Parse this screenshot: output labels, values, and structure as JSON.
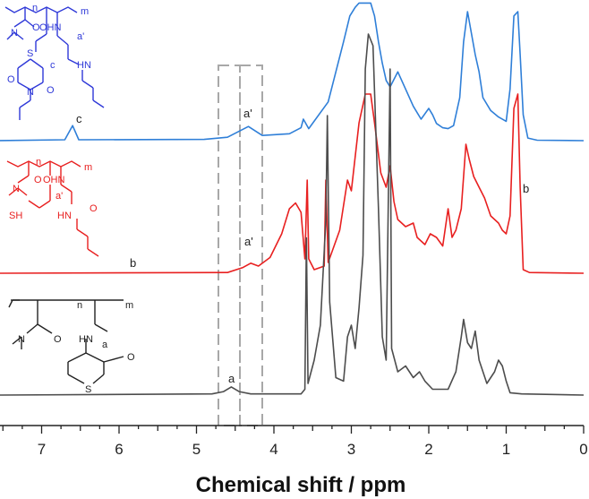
{
  "chart_data": {
    "type": "line",
    "title": "",
    "xlabel": "Chemical shift / ppm",
    "ylabel": "",
    "xlim": [
      7.55,
      0
    ],
    "x_reversed": true,
    "xticks": [
      7,
      6,
      5,
      4,
      3,
      2,
      1,
      0
    ],
    "grid": false,
    "series": [
      {
        "color": "#2f7fd8",
        "labels": [
          {
            "text": "c",
            "ppm": 6.6
          },
          {
            "text": "a'",
            "ppm": 4.33
          }
        ],
        "structure": {
          "labels": [
            "n",
            "m",
            "O",
            "OHN",
            "N",
            "a'",
            "S",
            "HN",
            "c",
            "O",
            "N",
            "O"
          ]
        },
        "points": [
          [
            7.55,
            0
          ],
          [
            6.7,
            0.02
          ],
          [
            6.6,
            0.35
          ],
          [
            6.52,
            0.02
          ],
          [
            4.9,
            0.03
          ],
          [
            4.6,
            0.08
          ],
          [
            4.33,
            0.33
          ],
          [
            4.15,
            0.12
          ],
          [
            3.8,
            0.16
          ],
          [
            3.65,
            0.3
          ],
          [
            3.62,
            0.5
          ],
          [
            3.55,
            0.28
          ],
          [
            3.3,
            0.9
          ],
          [
            3.2,
            1.6
          ],
          [
            3.1,
            2.3
          ],
          [
            3.02,
            2.9
          ],
          [
            2.95,
            3.1
          ],
          [
            2.9,
            3.2
          ],
          [
            2.82,
            3.2
          ],
          [
            2.75,
            3.2
          ],
          [
            2.7,
            2.9
          ],
          [
            2.65,
            2.3
          ],
          [
            2.6,
            1.8
          ],
          [
            2.55,
            1.4
          ],
          [
            2.5,
            1.25
          ],
          [
            2.4,
            1.6
          ],
          [
            2.3,
            1.2
          ],
          [
            2.2,
            0.8
          ],
          [
            2.1,
            0.5
          ],
          [
            2.0,
            0.75
          ],
          [
            1.95,
            0.6
          ],
          [
            1.9,
            0.4
          ],
          [
            1.82,
            0.3
          ],
          [
            1.75,
            0.28
          ],
          [
            1.68,
            0.35
          ],
          [
            1.6,
            1.0
          ],
          [
            1.55,
            2.3
          ],
          [
            1.5,
            3.0
          ],
          [
            1.45,
            2.5
          ],
          [
            1.4,
            2.0
          ],
          [
            1.35,
            1.6
          ],
          [
            1.3,
            1.0
          ],
          [
            1.2,
            0.7
          ],
          [
            1.1,
            0.55
          ],
          [
            1.0,
            0.45
          ],
          [
            0.95,
            1.2
          ],
          [
            0.9,
            2.9
          ],
          [
            0.85,
            3.0
          ],
          [
            0.82,
            2.0
          ],
          [
            0.78,
            0.6
          ],
          [
            0.72,
            0.06
          ],
          [
            0.6,
            0.01
          ],
          [
            0,
            0
          ]
        ]
      },
      {
        "color": "#e82020",
        "labels": [
          {
            "text": "b",
            "ppm": 0.75
          },
          {
            "text": "a'",
            "ppm": 4.33
          },
          {
            "text": "b",
            "ppm": 5.85
          }
        ],
        "structure": {
          "labels": [
            "n",
            "m",
            "O",
            "OHN",
            "N",
            "a'",
            "SH",
            "HN",
            "O"
          ]
        },
        "points": [
          [
            7.55,
            0
          ],
          [
            4.6,
            0.01
          ],
          [
            4.4,
            0.08
          ],
          [
            4.3,
            0.14
          ],
          [
            4.2,
            0.1
          ],
          [
            4.05,
            0.22
          ],
          [
            3.9,
            0.55
          ],
          [
            3.8,
            0.9
          ],
          [
            3.72,
            0.98
          ],
          [
            3.65,
            0.85
          ],
          [
            3.6,
            0.2
          ],
          [
            3.57,
            1.3
          ],
          [
            3.55,
            0.2
          ],
          [
            3.48,
            0.05
          ],
          [
            3.35,
            0.1
          ],
          [
            3.33,
            1.3
          ],
          [
            3.3,
            0.15
          ],
          [
            3.15,
            0.6
          ],
          [
            3.05,
            1.3
          ],
          [
            3.0,
            1.15
          ],
          [
            2.9,
            2.1
          ],
          [
            2.82,
            2.5
          ],
          [
            2.75,
            2.5
          ],
          [
            2.7,
            2.1
          ],
          [
            2.62,
            1.4
          ],
          [
            2.55,
            1.2
          ],
          [
            2.5,
            1.5
          ],
          [
            2.45,
            1.0
          ],
          [
            2.4,
            0.75
          ],
          [
            2.3,
            0.65
          ],
          [
            2.2,
            0.7
          ],
          [
            2.15,
            0.5
          ],
          [
            2.05,
            0.4
          ],
          [
            1.98,
            0.55
          ],
          [
            1.9,
            0.5
          ],
          [
            1.82,
            0.38
          ],
          [
            1.75,
            0.9
          ],
          [
            1.7,
            0.5
          ],
          [
            1.65,
            0.6
          ],
          [
            1.58,
            0.9
          ],
          [
            1.52,
            1.8
          ],
          [
            1.48,
            1.6
          ],
          [
            1.42,
            1.35
          ],
          [
            1.35,
            1.2
          ],
          [
            1.28,
            1.05
          ],
          [
            1.2,
            0.8
          ],
          [
            1.1,
            0.7
          ],
          [
            1.05,
            0.6
          ],
          [
            1.0,
            0.55
          ],
          [
            0.95,
            0.8
          ],
          [
            0.9,
            2.3
          ],
          [
            0.85,
            2.5
          ],
          [
            0.82,
            1.2
          ],
          [
            0.78,
            0.05
          ],
          [
            0.7,
            0.01
          ],
          [
            0,
            0
          ]
        ]
      },
      {
        "color": "#4d4d4d",
        "labels": [
          {
            "text": "a",
            "ppm": 4.55
          }
        ],
        "structure": {
          "labels": [
            "n",
            "m",
            "N",
            "O",
            "HN",
            "a",
            "O",
            "S"
          ]
        },
        "points": [
          [
            7.55,
            0
          ],
          [
            4.8,
            0.01
          ],
          [
            4.65,
            0.03
          ],
          [
            4.55,
            0.07
          ],
          [
            4.45,
            0.03
          ],
          [
            4.3,
            0.01
          ],
          [
            3.65,
            0.01
          ],
          [
            3.6,
            0.05
          ],
          [
            3.58,
            1.35
          ],
          [
            3.56,
            0.1
          ],
          [
            3.48,
            0.3
          ],
          [
            3.4,
            0.6
          ],
          [
            3.33,
            1.5
          ],
          [
            3.31,
            2.4
          ],
          [
            3.28,
            0.8
          ],
          [
            3.2,
            0.15
          ],
          [
            3.1,
            0.12
          ],
          [
            3.05,
            0.5
          ],
          [
            3.0,
            0.6
          ],
          [
            2.95,
            0.4
          ],
          [
            2.9,
            0.75
          ],
          [
            2.85,
            1.2
          ],
          [
            2.82,
            2.8
          ],
          [
            2.78,
            3.1
          ],
          [
            2.72,
            3.0
          ],
          [
            2.65,
            1.6
          ],
          [
            2.6,
            0.5
          ],
          [
            2.55,
            0.3
          ],
          [
            2.5,
            2.8
          ],
          [
            2.48,
            0.4
          ],
          [
            2.4,
            0.2
          ],
          [
            2.3,
            0.25
          ],
          [
            2.2,
            0.15
          ],
          [
            2.12,
            0.2
          ],
          [
            2.05,
            0.12
          ],
          [
            1.95,
            0.05
          ],
          [
            1.85,
            0.05
          ],
          [
            1.75,
            0.05
          ],
          [
            1.65,
            0.2
          ],
          [
            1.58,
            0.5
          ],
          [
            1.55,
            0.65
          ],
          [
            1.5,
            0.45
          ],
          [
            1.45,
            0.4
          ],
          [
            1.4,
            0.55
          ],
          [
            1.35,
            0.3
          ],
          [
            1.25,
            0.1
          ],
          [
            1.15,
            0.2
          ],
          [
            1.1,
            0.3
          ],
          [
            1.05,
            0.25
          ],
          [
            1.0,
            0.12
          ],
          [
            0.95,
            0.02
          ],
          [
            0.8,
            0.01
          ],
          [
            0,
            0
          ]
        ]
      }
    ]
  }
}
